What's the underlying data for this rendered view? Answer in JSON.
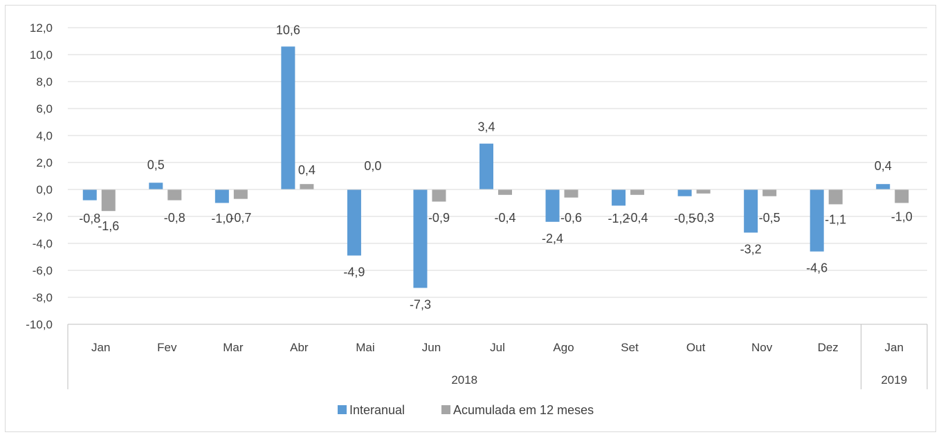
{
  "chart_data": {
    "type": "bar",
    "title": "",
    "xlabel": "",
    "ylabel": "",
    "categories": [
      "Jan",
      "Fev",
      "Mar",
      "Abr",
      "Mai",
      "Jun",
      "Jul",
      "Ago",
      "Set",
      "Out",
      "Nov",
      "Dez",
      "Jan"
    ],
    "groups": [
      {
        "label": "2018",
        "count": 12
      },
      {
        "label": "2019",
        "count": 1
      }
    ],
    "series": [
      {
        "name": "Interanual",
        "color": "#5b9bd5",
        "values": [
          -0.8,
          0.5,
          -1.0,
          10.6,
          -4.9,
          -7.3,
          3.4,
          -2.4,
          -1.2,
          -0.5,
          -3.2,
          -4.6,
          0.4
        ],
        "labels": [
          "-0,8",
          "0,5",
          "-1,0",
          "10,6",
          "-4,9",
          "-7,3",
          "3,4",
          "-2,4",
          "-1,2",
          "-0,5",
          "-3,2",
          "-4,6",
          "0,4"
        ]
      },
      {
        "name": "Acumulada em 12 meses",
        "color": "#a5a5a5",
        "values": [
          -1.6,
          -0.8,
          -0.7,
          0.4,
          0.0,
          -0.9,
          -0.4,
          -0.6,
          -0.4,
          -0.3,
          -0.5,
          -1.1,
          -1.0
        ],
        "labels": [
          "-1,6",
          "-0,8",
          "-0,7",
          "0,4",
          "0,0",
          "-0,9",
          "-0,4",
          "-0,6",
          "-0,4",
          "-0,3",
          "-0,5",
          "-1,1",
          "-1,0"
        ]
      }
    ],
    "ylim": [
      -10,
      12
    ],
    "yticks": [
      {
        "value": 12,
        "label": "12,0"
      },
      {
        "value": 10,
        "label": "10,0"
      },
      {
        "value": 8,
        "label": "8,0"
      },
      {
        "value": 6,
        "label": "6,0"
      },
      {
        "value": 4,
        "label": "4,0"
      },
      {
        "value": 2,
        "label": "2,0"
      },
      {
        "value": 0,
        "label": "0,0"
      },
      {
        "value": -2,
        "label": "-2,0"
      },
      {
        "value": -4,
        "label": "-4,0"
      },
      {
        "value": -6,
        "label": "-6,0"
      },
      {
        "value": -8,
        "label": "-8,0"
      },
      {
        "value": -10,
        "label": "-10,0"
      }
    ],
    "grid": true,
    "legend": "bottom"
  }
}
